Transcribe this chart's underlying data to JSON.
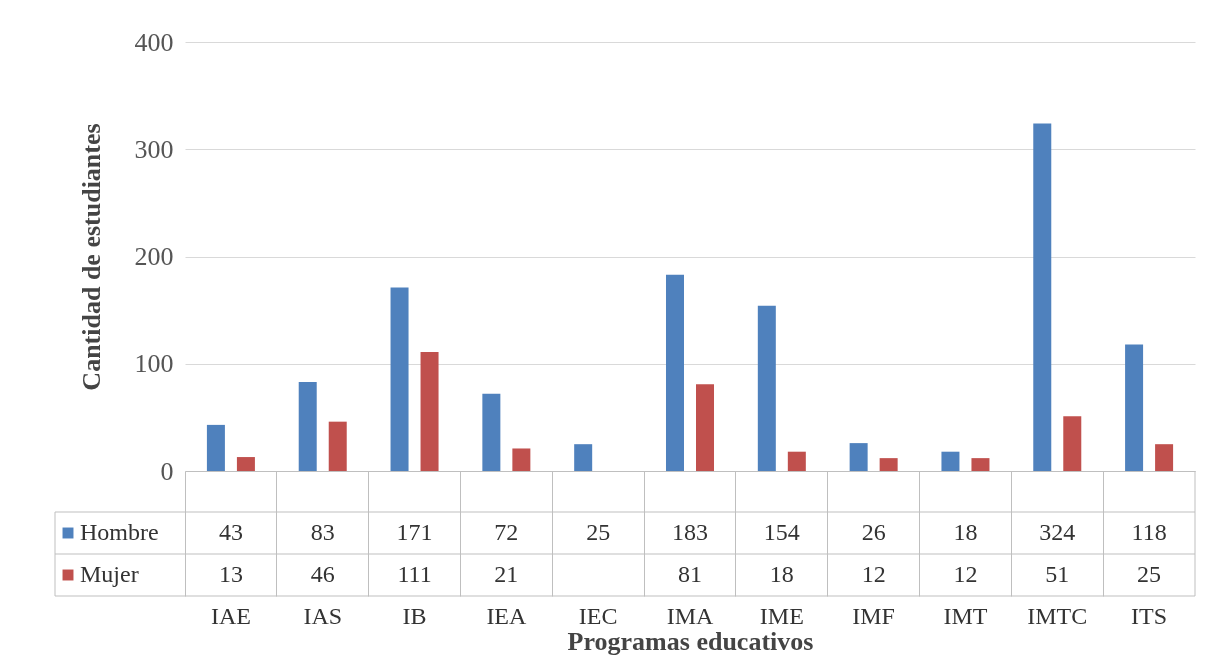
{
  "chart_data": {
    "type": "bar",
    "xlabel": "Programas educativos",
    "ylabel": "Cantidad de estudiantes",
    "categories": [
      "IAE",
      "IAS",
      "IB",
      "IEA",
      "IEC",
      "IMA",
      "IME",
      "IMF",
      "IMT",
      "IMTC",
      "ITS"
    ],
    "series": [
      {
        "name": "Hombre",
        "color": "#4f81bd",
        "values": [
          43,
          83,
          171,
          72,
          25,
          183,
          154,
          26,
          18,
          324,
          118
        ]
      },
      {
        "name": "Mujer",
        "color": "#c0504d",
        "values": [
          13,
          46,
          111,
          21,
          null,
          81,
          18,
          12,
          12,
          51,
          25
        ]
      }
    ],
    "ylim": [
      0,
      400
    ],
    "yticks": [
      0,
      100,
      200,
      300,
      400
    ],
    "grid": "y",
    "legend": "bottom left",
    "data_labels": true
  }
}
